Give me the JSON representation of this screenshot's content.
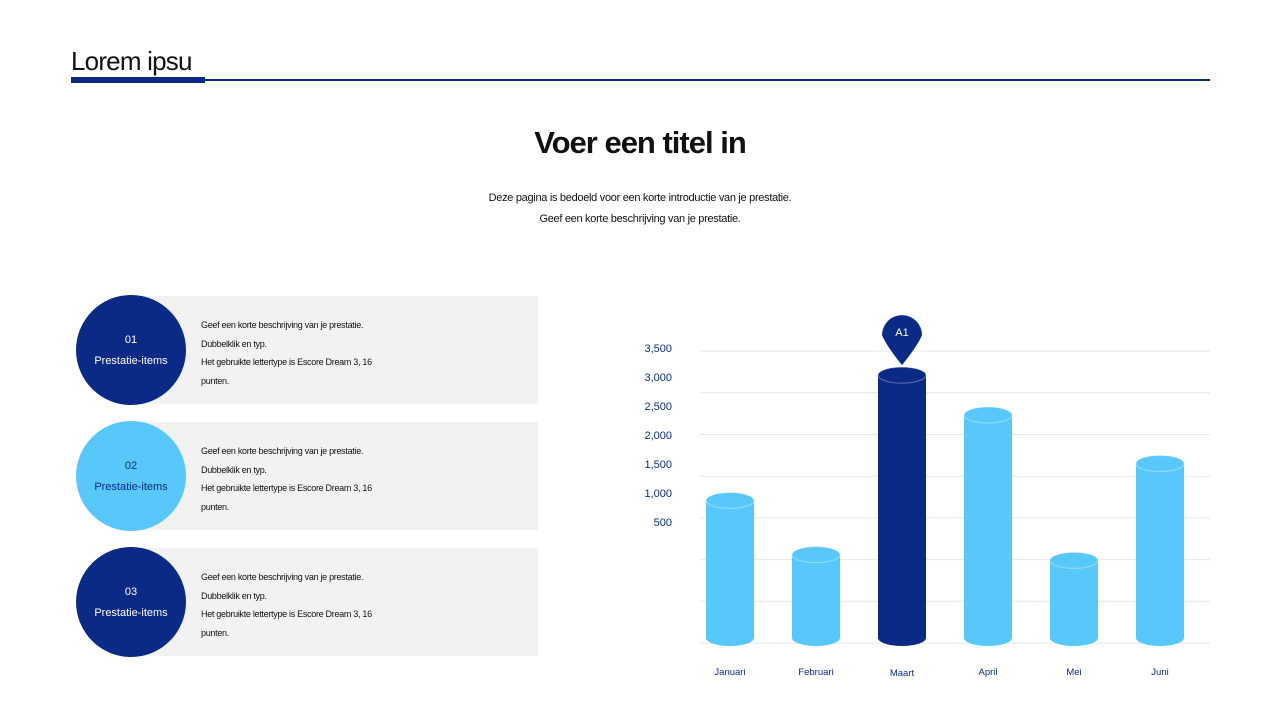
{
  "header": {
    "title": "Lorem ipsu"
  },
  "main": {
    "title": "Voer een titel in",
    "intro_line1": "Deze pagina is bedoeld voor een korte introductie van je prestatie.",
    "intro_line2": "Geef een korte beschrijving van je prestatie."
  },
  "items": [
    {
      "number": "01",
      "label": "Prestatie-items",
      "lines": [
        "Geef een korte beschrijving van je prestatie.",
        "Dubbelklik en typ.",
        "Het gebruikte lettertype is Escore Dream 3, 16",
        "punten."
      ]
    },
    {
      "number": "02",
      "label": "Prestatie-items",
      "lines": [
        "Geef een korte beschrijving van je prestatie.",
        "Dubbelklik en typ.",
        "Het gebruikte lettertype is Escore Dream 3, 16",
        "punten."
      ]
    },
    {
      "number": "03",
      "label": "Prestatie-items",
      "lines": [
        "Geef een korte beschrijving van je prestatie.",
        "Dubbelklik en typ.",
        "Het gebruikte lettertype is Escore Dream 3, 16",
        "punten."
      ]
    }
  ],
  "colors": {
    "dark": "#0b2a86",
    "light": "#58c8fa",
    "grid": "#e6e6ea"
  },
  "chart_data": {
    "type": "bar",
    "categories": [
      "Januari",
      "Februari",
      "Maart",
      "April",
      "Mei",
      "Juni"
    ],
    "values": [
      2500,
      1550,
      4700,
      4000,
      1450,
      3150
    ],
    "highlight_index": 2,
    "marker_label": "A1",
    "yticks": [
      "500",
      "1,000",
      "1,500",
      "2,000",
      "2,500",
      "3,000",
      "3,500"
    ],
    "ylim": [
      0,
      5000
    ],
    "grid": true,
    "title": "",
    "xlabel": "",
    "ylabel": ""
  }
}
